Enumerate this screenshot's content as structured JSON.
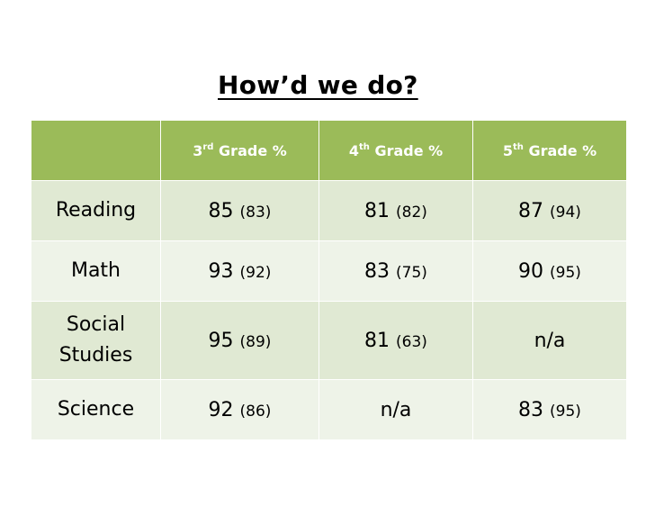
{
  "title": "How’d we do?",
  "table": {
    "headers": [
      {
        "num": "",
        "suffix": "",
        "rest": ""
      },
      {
        "num": "3",
        "suffix": "rd",
        "rest": " Grade %"
      },
      {
        "num": "4",
        "suffix": "th",
        "rest": " Grade %"
      },
      {
        "num": "5",
        "suffix": "th",
        "rest": " Grade %"
      }
    ],
    "rows": [
      {
        "subject": "Reading",
        "cells": [
          {
            "value": "85",
            "prev": "(83)"
          },
          {
            "value": "81",
            "prev": "(82)"
          },
          {
            "value": "87",
            "prev": "(94)"
          }
        ]
      },
      {
        "subject": "Math",
        "cells": [
          {
            "value": "93",
            "prev": "(92)"
          },
          {
            "value": "83",
            "prev": "(75)"
          },
          {
            "value": "90",
            "prev": "(95)"
          }
        ]
      },
      {
        "subject": "Social Studies",
        "cells": [
          {
            "value": "95",
            "prev": "(89)"
          },
          {
            "value": "81",
            "prev": "(63)"
          },
          {
            "value": "n/a",
            "prev": ""
          }
        ]
      },
      {
        "subject": "Science",
        "cells": [
          {
            "value": "92",
            "prev": "(86)"
          },
          {
            "value": "n/a",
            "prev": ""
          },
          {
            "value": "83",
            "prev": "(95)"
          }
        ]
      }
    ]
  },
  "colors": {
    "header_bg": "#9bbb59",
    "row_odd": "#e0e9d3",
    "row_even": "#eef3e8"
  }
}
